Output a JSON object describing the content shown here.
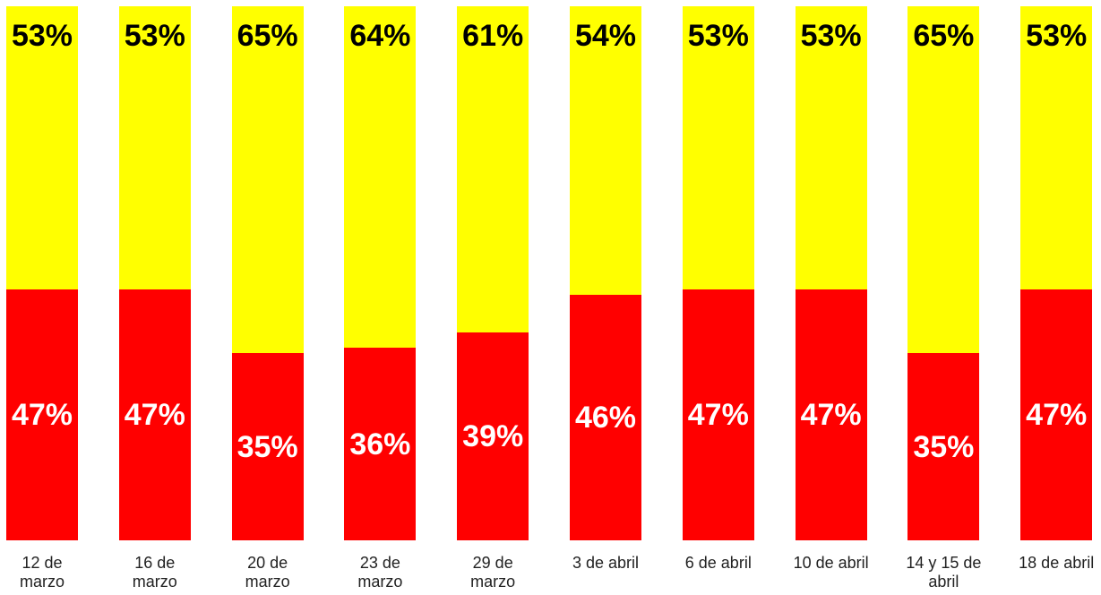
{
  "chart_data": {
    "type": "stacked_bar",
    "categories": [
      "12 de marzo",
      "16 de marzo",
      "20 de marzo",
      "23 de marzo",
      "29 de marzo",
      "3 de abril",
      "6 de abril",
      "10 de abril",
      "14 y 15 de abril",
      "18 de abril"
    ],
    "ylim": [
      0,
      100
    ],
    "series": [
      {
        "color": "#ff0000",
        "label_color": "#ffffff",
        "values": [
          47,
          47,
          35,
          36,
          39,
          46,
          47,
          47,
          35,
          47
        ],
        "value_labels": [
          "47%",
          "47%",
          "35%",
          "36%",
          "39%",
          "46%",
          "47%",
          "47%",
          "35%",
          "47%"
        ]
      },
      {
        "color": "#ffff00",
        "label_color": "#000000",
        "values": [
          53,
          53,
          65,
          64,
          61,
          54,
          53,
          53,
          65,
          53
        ],
        "value_labels": [
          "53%",
          "53%",
          "65%",
          "64%",
          "61%",
          "54%",
          "53%",
          "53%",
          "65%",
          "53%"
        ]
      }
    ]
  }
}
